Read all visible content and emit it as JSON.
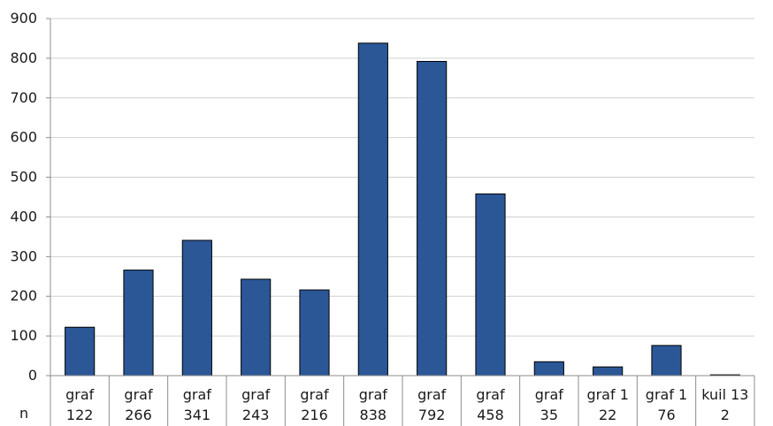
{
  "chart_data": {
    "type": "bar",
    "title": "",
    "xlabel": "n",
    "ylabel": "",
    "ylim": [
      0,
      900
    ],
    "yticks": [
      0,
      100,
      200,
      300,
      400,
      500,
      600,
      700,
      800,
      900
    ],
    "grid": true,
    "legend": "none",
    "categories": [
      [
        "graf",
        "122"
      ],
      [
        "graf",
        "266"
      ],
      [
        "graf",
        "341"
      ],
      [
        "graf",
        "243"
      ],
      [
        "graf",
        "216"
      ],
      [
        "graf",
        "838"
      ],
      [
        "graf",
        "792"
      ],
      [
        "graf",
        "458"
      ],
      [
        "graf",
        "35"
      ],
      [
        "graf 1",
        "22"
      ],
      [
        "graf 1",
        "76"
      ],
      [
        "kuil 13",
        "2"
      ]
    ],
    "values": [
      122,
      266,
      341,
      243,
      216,
      838,
      792,
      458,
      35,
      22,
      76,
      2
    ],
    "colors": {
      "bar_fill": "#2b5797",
      "bar_stroke": "#000000",
      "grid": "#d0d0d0",
      "axis": "#8c8c8c"
    }
  }
}
